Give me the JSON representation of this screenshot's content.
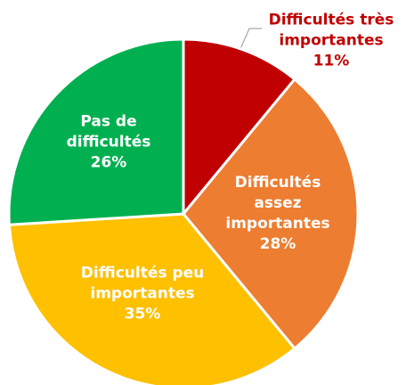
{
  "chart_data": {
    "type": "pie",
    "categories": [
      "Difficultés très importantes",
      "Difficultés assez importantes",
      "Difficultés peu importantes",
      "Pas de difficultés"
    ],
    "values": [
      11,
      28,
      35,
      26
    ],
    "value_labels": [
      "11%",
      "28%",
      "35%",
      "26%"
    ],
    "colors": [
      "#c00000",
      "#ed7d31",
      "#ffc000",
      "#00b050"
    ]
  }
}
